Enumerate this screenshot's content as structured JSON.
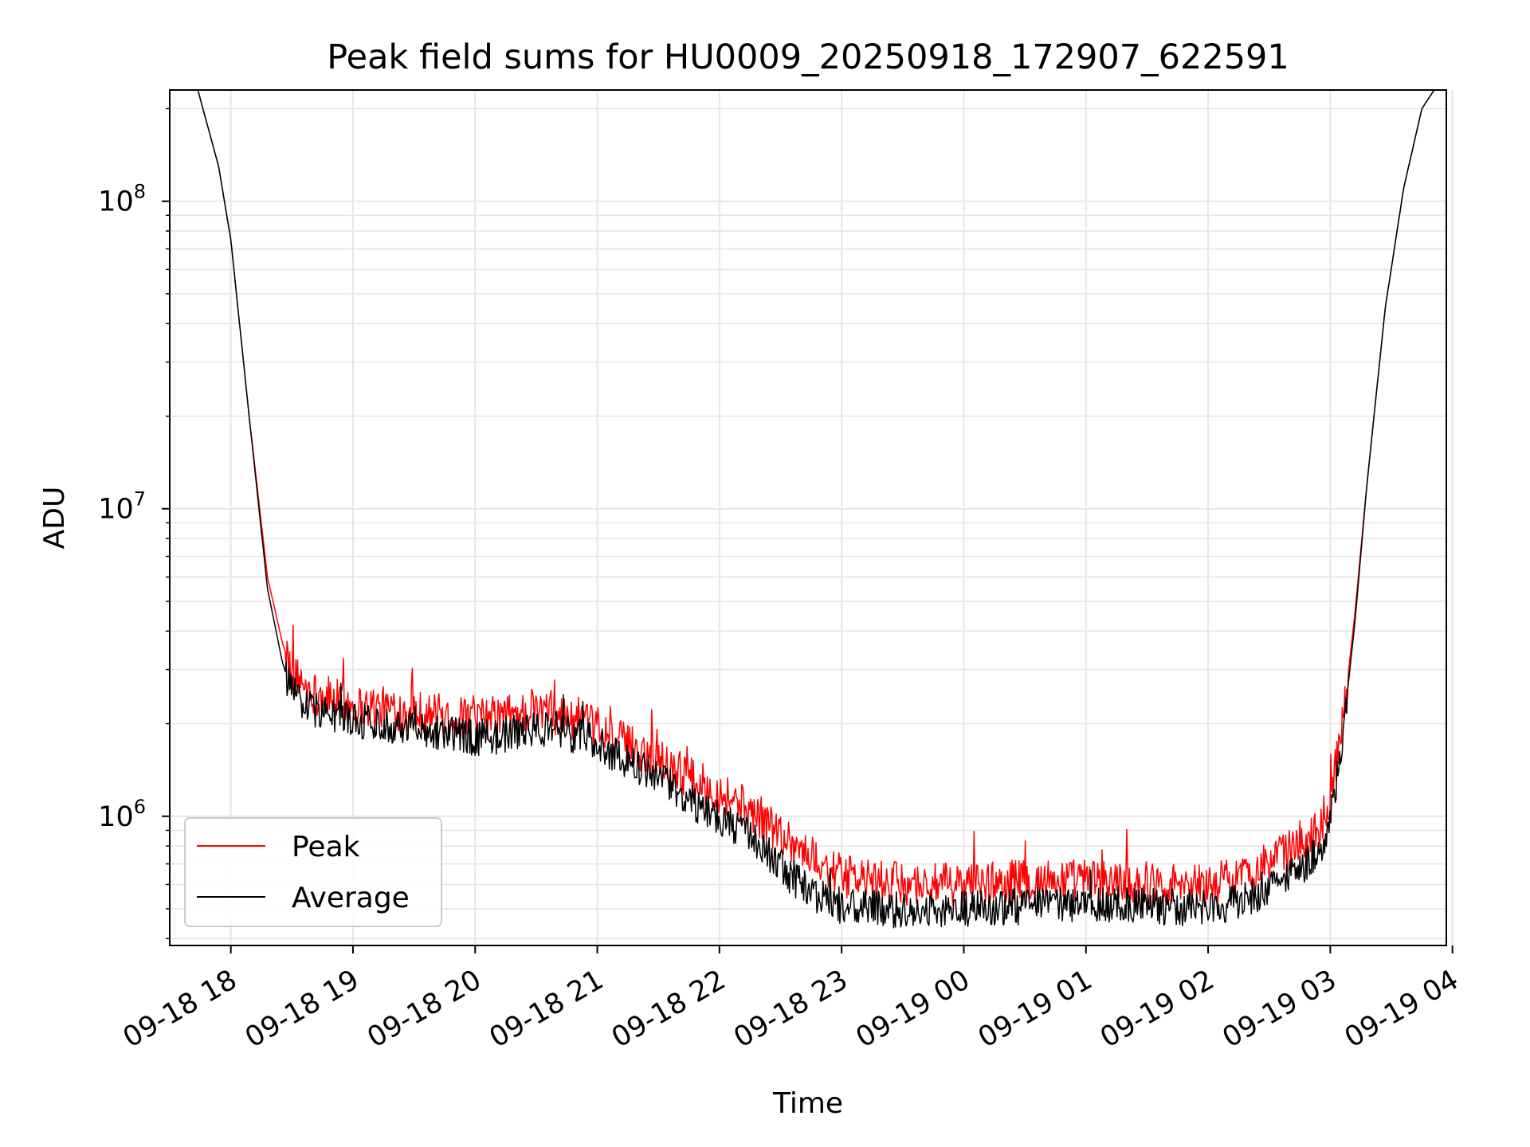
{
  "chart_data": {
    "type": "line",
    "title": "Peak field sums for HU0009_20250918_172907_622591",
    "xlabel": "Time",
    "ylabel": "ADU",
    "yscale": "log",
    "xlim_hours": [
      -0.5,
      9.95
    ],
    "ylim": [
      380000,
      230000000
    ],
    "grid": true,
    "legend_position": "lower-left",
    "x_ticks": [
      {
        "hour": 0,
        "label": "09-18 18"
      },
      {
        "hour": 1,
        "label": "09-18 19"
      },
      {
        "hour": 2,
        "label": "09-18 20"
      },
      {
        "hour": 3,
        "label": "09-18 21"
      },
      {
        "hour": 4,
        "label": "09-18 22"
      },
      {
        "hour": 5,
        "label": "09-18 23"
      },
      {
        "hour": 6,
        "label": "09-19 00"
      },
      {
        "hour": 7,
        "label": "09-19 01"
      },
      {
        "hour": 8,
        "label": "09-19 02"
      },
      {
        "hour": 9,
        "label": "09-19 03"
      },
      {
        "hour": 10,
        "label": "09-19 04"
      }
    ],
    "y_ticks": [
      {
        "value": 1000000,
        "base": "10",
        "exp": "6"
      },
      {
        "value": 10000000,
        "base": "10",
        "exp": "7"
      },
      {
        "value": 100000000,
        "base": "10",
        "exp": "8"
      }
    ],
    "note_x": "x values are hours after 09-18 18:00",
    "series": [
      {
        "name": "Peak",
        "color": "#ff0000",
        "noise": 0.14,
        "x": [
          -0.27,
          -0.1,
          0.0,
          0.15,
          0.3,
          0.42,
          0.5,
          0.7,
          1.0,
          1.5,
          2.0,
          2.3,
          2.6,
          2.9,
          3.2,
          3.5,
          3.8,
          4.1,
          4.4,
          4.7,
          5.0,
          5.3,
          5.7,
          6.0,
          6.5,
          7.0,
          7.5,
          8.0,
          8.3,
          8.6,
          8.9,
          9.0,
          9.1,
          9.2,
          9.3,
          9.45,
          9.6,
          9.75,
          9.85
        ],
        "values": [
          230000000,
          130000000,
          75000000,
          20000000,
          6000000,
          3700000,
          2900000,
          2500000,
          2300000,
          2200000,
          2050000,
          2150000,
          2200000,
          2000000,
          1750000,
          1550000,
          1300000,
          1150000,
          950000,
          760000,
          640000,
          610000,
          600000,
          600000,
          620000,
          620000,
          610000,
          600000,
          640000,
          750000,
          900000,
          1150000,
          2000000,
          4500000,
          12000000,
          45000000,
          110000000,
          200000000,
          230000000
        ]
      },
      {
        "name": "Average",
        "color": "#000000",
        "noise": 0.12,
        "x": [
          -0.27,
          -0.1,
          0.0,
          0.15,
          0.3,
          0.42,
          0.5,
          0.7,
          1.0,
          1.5,
          2.0,
          2.3,
          2.6,
          2.9,
          3.2,
          3.5,
          3.8,
          4.1,
          4.4,
          4.7,
          5.0,
          5.3,
          5.7,
          6.0,
          6.5,
          7.0,
          7.5,
          8.0,
          8.3,
          8.6,
          8.9,
          9.0,
          9.1,
          9.2,
          9.3,
          9.45,
          9.6,
          9.75,
          9.85
        ],
        "values": [
          230000000,
          130000000,
          75000000,
          20000000,
          5500000,
          3200000,
          2500000,
          2200000,
          2050000,
          1950000,
          1800000,
          1850000,
          1950000,
          1800000,
          1550000,
          1330000,
          1100000,
          950000,
          750000,
          580000,
          510000,
          500000,
          490000,
          500000,
          510000,
          520000,
          510000,
          500000,
          530000,
          620000,
          750000,
          950000,
          1800000,
          4200000,
          12000000,
          45000000,
          110000000,
          200000000,
          230000000
        ]
      }
    ]
  }
}
